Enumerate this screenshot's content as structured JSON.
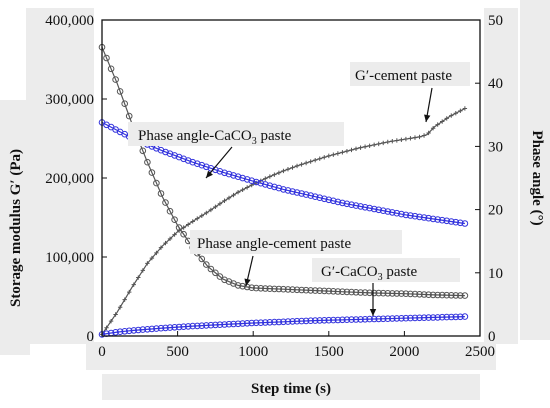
{
  "chart_data": {
    "type": "line",
    "xlabel": "Step time (s)",
    "ylabel_left": "Storage modulus G′ (Pa)",
    "ylabel_right": "Phase angle (°)",
    "xlim": [
      0,
      2500
    ],
    "ylim_left": [
      0,
      400000
    ],
    "ylim_right": [
      0,
      50
    ],
    "x_ticks": [
      "0",
      "500",
      "1000",
      "1500",
      "2000",
      "2500"
    ],
    "y_left_ticks": [
      "0",
      "100,000",
      "200,000",
      "300,000",
      "400,000"
    ],
    "y_right_ticks": [
      "0",
      "10",
      "20",
      "30",
      "40",
      "50"
    ],
    "grid": false,
    "series": [
      {
        "name": "G′-cement paste",
        "axis": "left",
        "color": "#555555",
        "marker": "cross",
        "points": [
          [
            0,
            2000
          ],
          [
            100,
            30000
          ],
          [
            200,
            62000
          ],
          [
            300,
            92000
          ],
          [
            400,
            114000
          ],
          [
            500,
            132000
          ],
          [
            600,
            145000
          ],
          [
            700,
            157000
          ],
          [
            800,
            170000
          ],
          [
            900,
            182000
          ],
          [
            1000,
            192000
          ],
          [
            1100,
            201000
          ],
          [
            1200,
            209000
          ],
          [
            1300,
            216000
          ],
          [
            1400,
            222000
          ],
          [
            1500,
            228000
          ],
          [
            1600,
            233000
          ],
          [
            1700,
            238000
          ],
          [
            1800,
            242000
          ],
          [
            1900,
            246000
          ],
          [
            2000,
            249000
          ],
          [
            2100,
            252000
          ],
          [
            2150,
            255000
          ],
          [
            2200,
            265000
          ],
          [
            2300,
            278000
          ],
          [
            2400,
            288000
          ]
        ]
      },
      {
        "name": "Phase angle-cement paste",
        "axis": "right",
        "color": "#555555",
        "marker": "open-circle",
        "points": [
          [
            0,
            45.7
          ],
          [
            100,
            40.0
          ],
          [
            200,
            33.5
          ],
          [
            300,
            27.5
          ],
          [
            400,
            22.0
          ],
          [
            500,
            17.5
          ],
          [
            600,
            14.0
          ],
          [
            700,
            11.0
          ],
          [
            800,
            9.0
          ],
          [
            900,
            8.0
          ],
          [
            1000,
            7.6
          ],
          [
            1200,
            7.4
          ],
          [
            1400,
            7.2
          ],
          [
            1600,
            7.0
          ],
          [
            1800,
            6.8
          ],
          [
            2000,
            6.7
          ],
          [
            2200,
            6.5
          ],
          [
            2400,
            6.4
          ]
        ]
      },
      {
        "name": "Phase angle-CaCO3 paste",
        "axis": "right",
        "color": "#3333dd",
        "marker": "open-circle",
        "points": [
          [
            0,
            33.8
          ],
          [
            200,
            31.3
          ],
          [
            400,
            29.3
          ],
          [
            600,
            27.5
          ],
          [
            800,
            25.9
          ],
          [
            1000,
            24.5
          ],
          [
            1200,
            23.2
          ],
          [
            1400,
            22.1
          ],
          [
            1600,
            21.0
          ],
          [
            1800,
            20.1
          ],
          [
            2000,
            19.2
          ],
          [
            2200,
            18.5
          ],
          [
            2400,
            17.8
          ]
        ]
      },
      {
        "name": "G′-CaCO3 paste",
        "axis": "left",
        "color": "#3333dd",
        "marker": "open-circle",
        "points": [
          [
            0,
            2000
          ],
          [
            100,
            5000
          ],
          [
            200,
            7000
          ],
          [
            400,
            10000
          ],
          [
            600,
            12500
          ],
          [
            800,
            14500
          ],
          [
            1000,
            16500
          ],
          [
            1200,
            18000
          ],
          [
            1400,
            19500
          ],
          [
            1600,
            20500
          ],
          [
            1800,
            21500
          ],
          [
            2000,
            22500
          ],
          [
            2200,
            23500
          ],
          [
            2400,
            24500
          ]
        ]
      }
    ],
    "annotations": [
      {
        "key": "g_cement",
        "main": "G′-cement paste",
        "sub": "",
        "tail": ""
      },
      {
        "key": "pa_caco3",
        "main": "Phase angle-CaCO",
        "sub": "3",
        "tail": " paste"
      },
      {
        "key": "pa_cement",
        "main": "Phase angle-cement paste",
        "sub": "",
        "tail": ""
      },
      {
        "key": "g_caco3",
        "main": "G′-CaCO",
        "sub": "3",
        "tail": " paste"
      }
    ]
  }
}
